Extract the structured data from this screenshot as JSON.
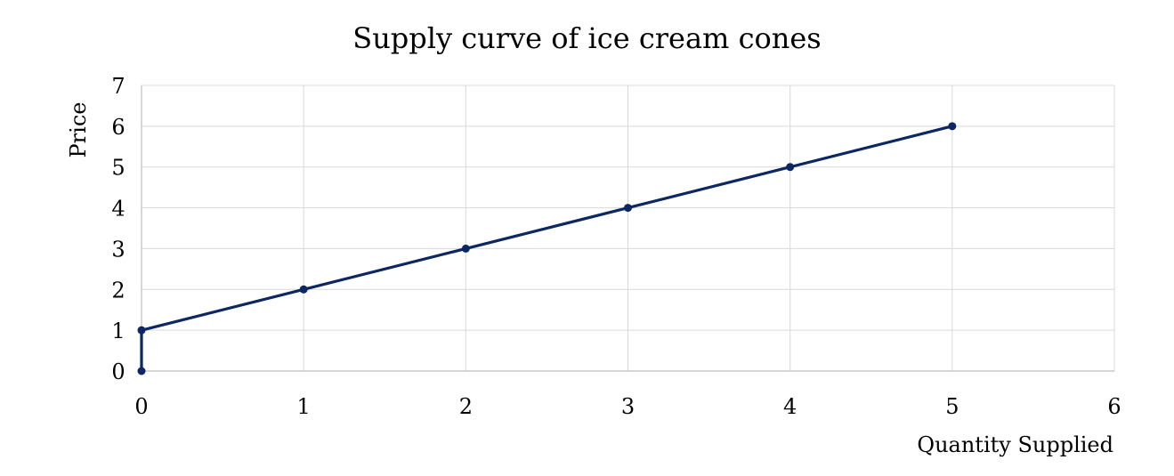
{
  "chart_data": {
    "type": "line",
    "title": "Supply curve of ice cream cones",
    "xlabel": "Quantity Supplied",
    "ylabel": "Price",
    "xlim": [
      0,
      6
    ],
    "ylim": [
      0,
      7
    ],
    "xticks": [
      0,
      1,
      2,
      3,
      4,
      5,
      6
    ],
    "yticks": [
      0,
      1,
      2,
      3,
      4,
      5,
      6,
      7
    ],
    "grid": true,
    "series": [
      {
        "x": [
          0,
          0,
          1,
          2,
          3,
          4,
          5
        ],
        "y": [
          0,
          1,
          2,
          3,
          4,
          5,
          6
        ]
      }
    ],
    "colors": {
      "series": "#0d2763",
      "grid": "#d9d9d9",
      "axis": "#bfbfbf"
    }
  }
}
